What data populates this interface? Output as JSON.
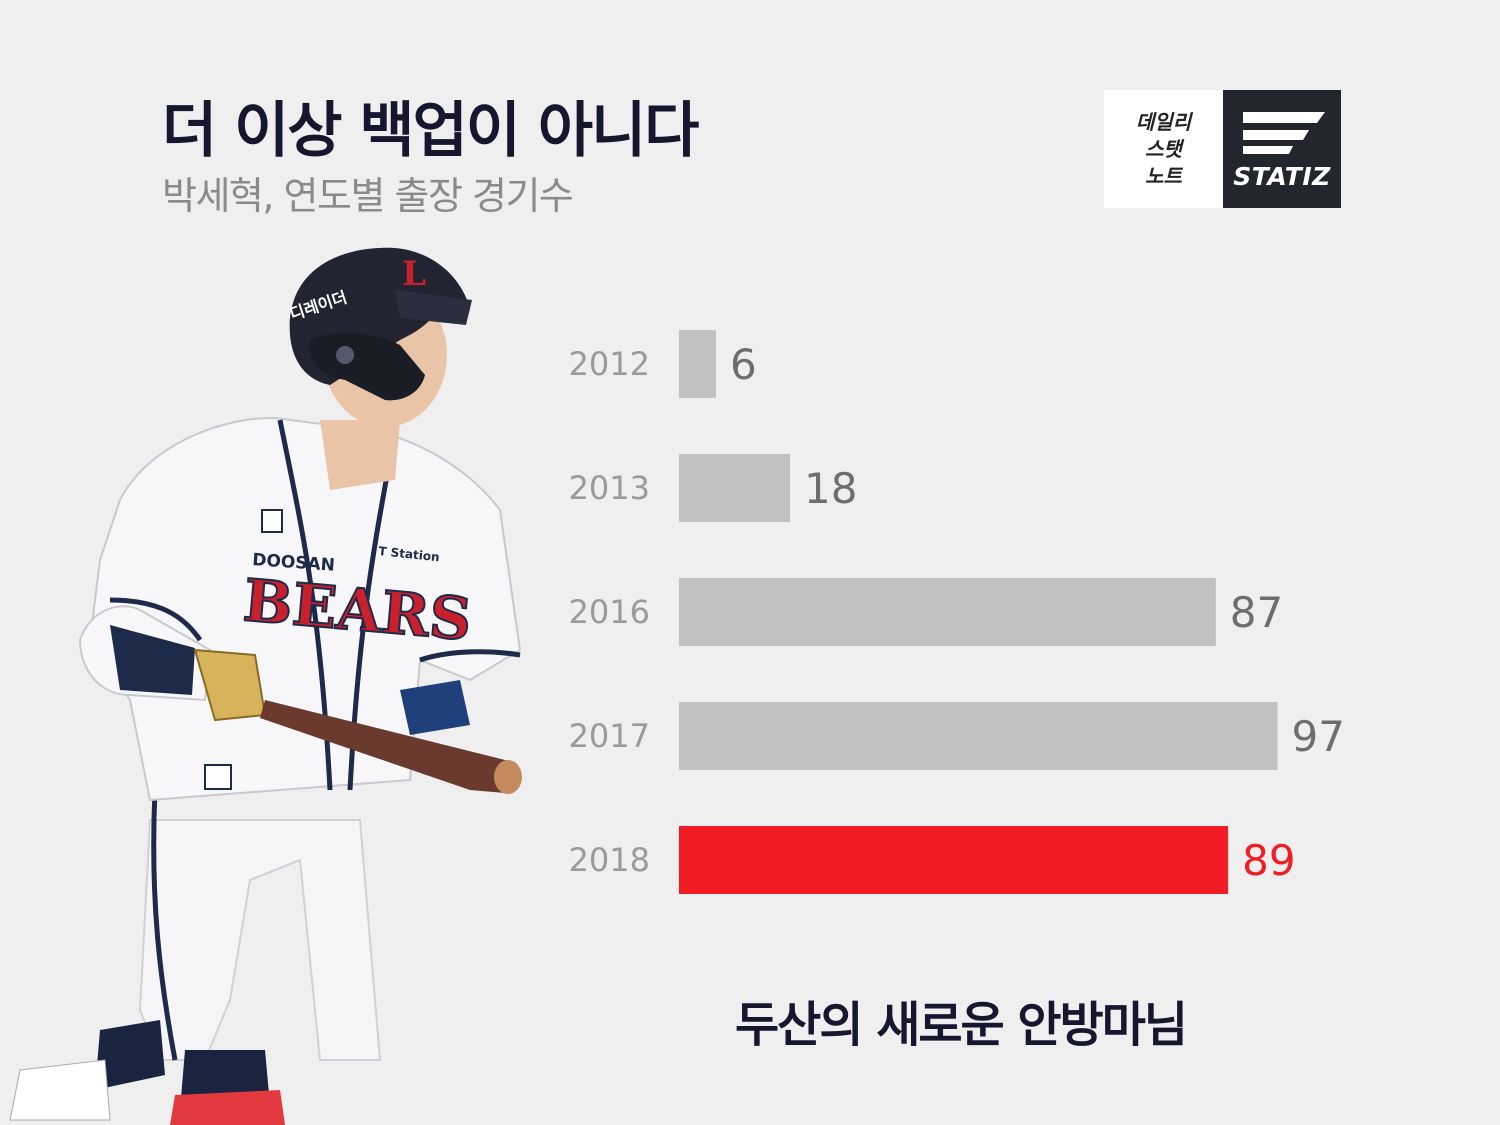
{
  "header": {
    "title": "더 이상 백업이 아니다",
    "subtitle": "박세혁, 연도별 출장 경기수"
  },
  "logo": {
    "line1": "데일리",
    "line2": "스탯",
    "line3": "노트",
    "brand": "STATIZ"
  },
  "footer": {
    "caption": "두산의 새로운 안방마님"
  },
  "player_photo": {
    "helmet_text": "디레이더",
    "jersey_brand": "DOOSAN",
    "jersey_team": "BEARS",
    "sponsor": "T Station"
  },
  "colors": {
    "background": "#efefef",
    "bar_default": "#c1c1c1",
    "bar_highlight": "#f21c24",
    "label_default": "#6e6e6e",
    "year_label": "#9a9a9a",
    "title": "#16162e"
  },
  "chart_data": {
    "type": "bar",
    "orientation": "horizontal",
    "title": "",
    "xlabel": "",
    "ylabel": "",
    "categories": [
      "2012",
      "2013",
      "2016",
      "2017",
      "2018"
    ],
    "values": [
      6,
      18,
      87,
      97,
      89
    ],
    "highlight_index": 4,
    "xlim": [
      0,
      97
    ],
    "grid": false,
    "legend": "none"
  }
}
